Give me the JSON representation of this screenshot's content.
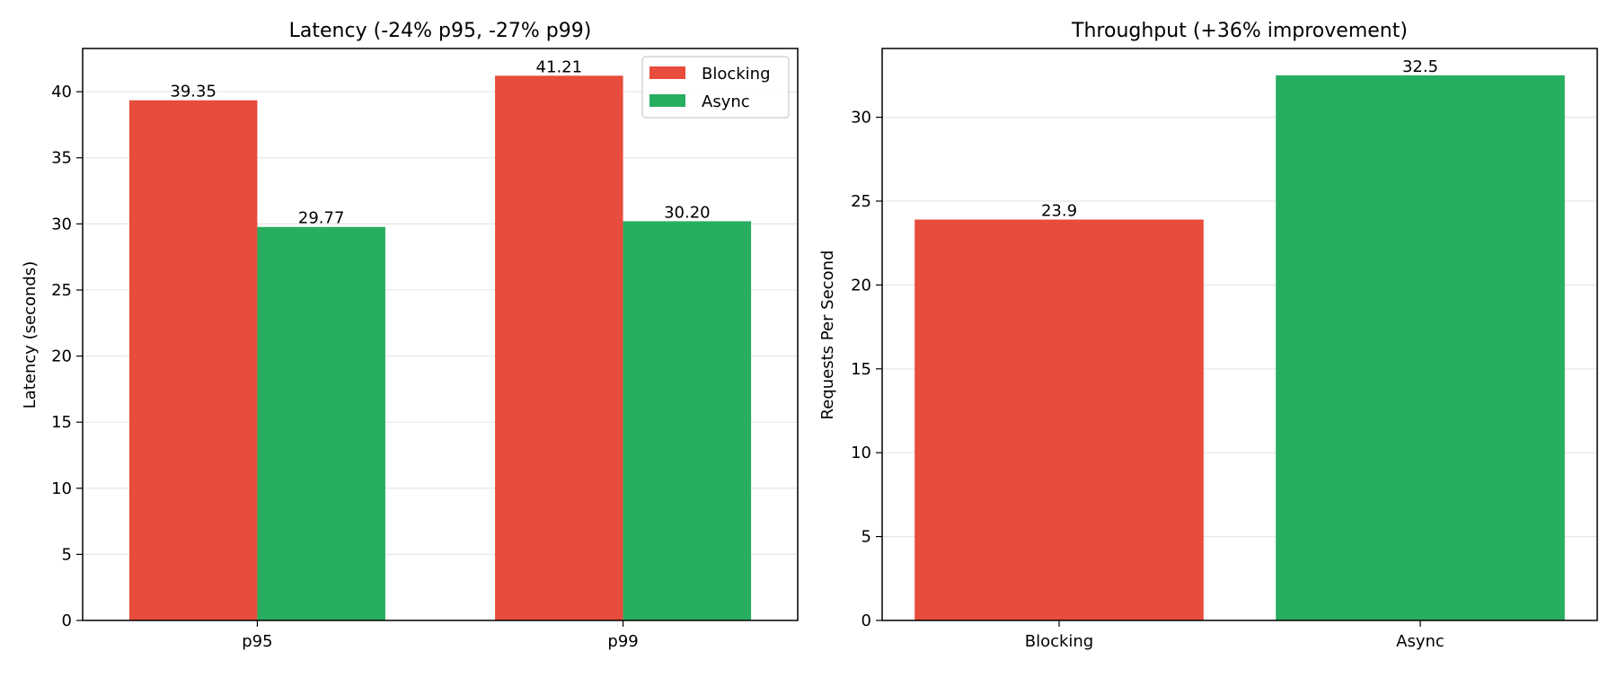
{
  "chart_data": [
    {
      "type": "bar",
      "title": "Latency (-24% p95, -27% p99)",
      "xlabel": "",
      "ylabel": "Latency (seconds)",
      "categories": [
        "p95",
        "p99"
      ],
      "series": [
        {
          "name": "Blocking",
          "color": "#e74c3c",
          "values": [
            39.35,
            41.21
          ],
          "labels": [
            "39.35",
            "41.21"
          ]
        },
        {
          "name": "Async",
          "color": "#27ae60",
          "values": [
            29.77,
            30.2
          ],
          "labels": [
            "29.77",
            "30.20"
          ]
        }
      ],
      "ylim": [
        0,
        43.27
      ],
      "yticks": [
        0,
        5,
        10,
        15,
        20,
        25,
        30,
        35,
        40
      ],
      "grid": "y",
      "legend": "top-right"
    },
    {
      "type": "bar",
      "title": "Throughput (+36% improvement)",
      "xlabel": "",
      "ylabel": "Requests Per Second",
      "categories": [
        "Blocking",
        "Async"
      ],
      "values": [
        23.9,
        32.5
      ],
      "labels": [
        "23.9",
        "32.5"
      ],
      "colors": [
        "#e74c3c",
        "#27ae60"
      ],
      "ylim": [
        0,
        34.1
      ],
      "yticks": [
        0,
        5,
        10,
        15,
        20,
        25,
        30
      ],
      "grid": "y"
    }
  ]
}
